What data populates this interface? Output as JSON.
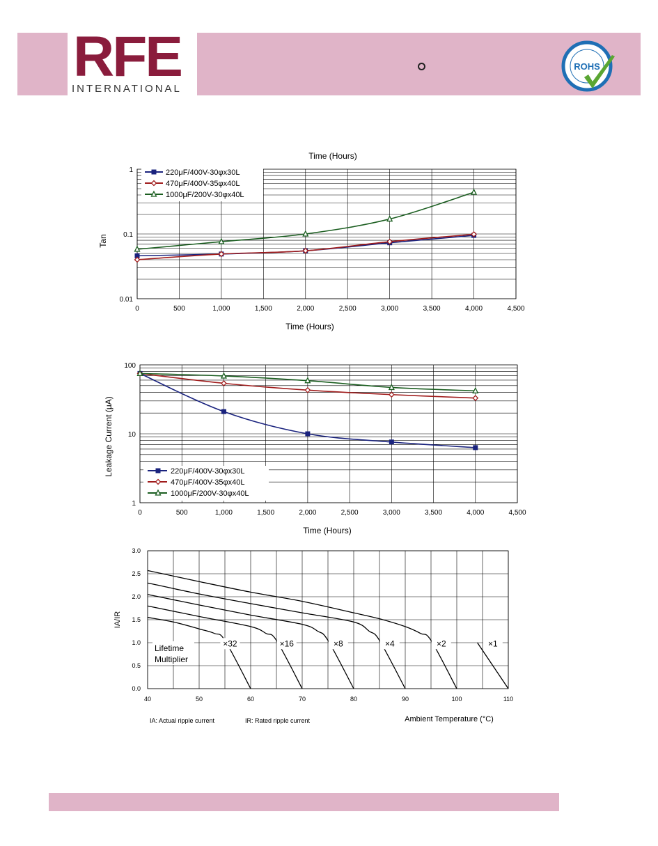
{
  "header": {
    "logo_main": "RFE",
    "logo_sub": "INTERNATIONAL",
    "rohs_badge": "ROHS",
    "colors": {
      "band": "#e0b4c8",
      "logo": "#8a1c3c",
      "rohs_blue": "#1f6fb5",
      "rohs_check": "#5aa632"
    }
  },
  "chart_data": [
    {
      "type": "line",
      "title": "Time (Hours)",
      "xlabel": "Time (Hours)",
      "ylabel": "Tan",
      "xlim": [
        0,
        4500
      ],
      "ylim": [
        0.01,
        1
      ],
      "yscale": "log",
      "x_ticks": [
        "0",
        "500",
        "1,000",
        "1,500",
        "2,000",
        "2,500",
        "3,000",
        "3,500",
        "4,000",
        "4,500"
      ],
      "y_ticks": [
        "1",
        "0.1",
        "0.01"
      ],
      "legend_position": "top-left",
      "series": [
        {
          "name": "220μF/400V-30φx30L",
          "color": "#1a237e",
          "marker": "square",
          "x": [
            0,
            1000,
            2000,
            3000,
            4000
          ],
          "values": [
            0.046,
            0.049,
            0.055,
            0.073,
            0.095
          ]
        },
        {
          "name": "470μF/400V-35φx40L",
          "color": "#a01c1c",
          "marker": "diamond",
          "x": [
            0,
            1000,
            2000,
            3000,
            4000
          ],
          "values": [
            0.04,
            0.049,
            0.055,
            0.076,
            0.099
          ]
        },
        {
          "name": "1000μF/200V-30φx40L",
          "color": "#1b5e20",
          "marker": "triangle",
          "x": [
            0,
            1000,
            2000,
            3000,
            4000
          ],
          "values": [
            0.058,
            0.076,
            0.1,
            0.17,
            0.44
          ]
        }
      ]
    },
    {
      "type": "line",
      "xlabel": "Time (Hours)",
      "ylabel": "Leakage Current (μA)",
      "xlim": [
        0,
        4500
      ],
      "ylim": [
        1,
        100
      ],
      "yscale": "log",
      "x_ticks": [
        "0",
        "500",
        "1,000",
        "1,500",
        "2,000",
        "2,500",
        "3,000",
        "3,500",
        "4,000",
        "4,500"
      ],
      "y_ticks": [
        "100",
        "10",
        "1"
      ],
      "legend_position": "bottom-left",
      "series": [
        {
          "name": "220μF/400V-30φx30L",
          "color": "#1a237e",
          "marker": "square",
          "x": [
            0,
            1000,
            2000,
            3000,
            4000
          ],
          "values": [
            75,
            21,
            10,
            7.6,
            6.3
          ]
        },
        {
          "name": "470μF/400V-35φx40L",
          "color": "#a01c1c",
          "marker": "diamond",
          "x": [
            0,
            1000,
            2000,
            3000,
            4000
          ],
          "values": [
            75,
            54,
            43,
            37,
            33
          ]
        },
        {
          "name": "1000μF/200V-30φx40L",
          "color": "#1b5e20",
          "marker": "triangle",
          "x": [
            0,
            1000,
            2000,
            3000,
            4000
          ],
          "values": [
            75,
            69,
            59,
            47,
            42
          ]
        }
      ]
    },
    {
      "type": "line",
      "xlabel": "Ambient Temperature (°C)",
      "ylabel": "IA/IR",
      "xlim": [
        40,
        110
      ],
      "ylim": [
        0,
        3
      ],
      "x_ticks": [
        "40",
        "50",
        "60",
        "70",
        "80",
        "90",
        "100",
        "110"
      ],
      "y_ticks": [
        "3.0",
        "2.5",
        "2.0",
        "1.5",
        "1.0",
        "0.5",
        "0.0"
      ],
      "notes": [
        "IA: Actual ripple current",
        "IR: Rated ripple current"
      ],
      "lifetime_label": "Lifetime Multiplier",
      "multipliers": [
        "×32",
        "×16",
        "×8",
        "×4",
        "×2",
        "×1"
      ],
      "series": [
        {
          "name": "×32",
          "x": [
            40,
            45,
            50,
            53,
            55,
            60
          ],
          "values": [
            1.55,
            1.45,
            1.3,
            1.2,
            1.05,
            0
          ]
        },
        {
          "name": "×16",
          "x": [
            40,
            50,
            60,
            63,
            65,
            70
          ],
          "values": [
            1.8,
            1.57,
            1.35,
            1.2,
            1.05,
            0
          ]
        },
        {
          "name": "×8",
          "x": [
            40,
            50,
            60,
            70,
            73,
            75,
            80
          ],
          "values": [
            2.05,
            1.82,
            1.6,
            1.4,
            1.25,
            1.05,
            0
          ]
        },
        {
          "name": "×4",
          "x": [
            40,
            50,
            60,
            70,
            80,
            83,
            85,
            90
          ],
          "values": [
            2.3,
            2.06,
            1.85,
            1.65,
            1.45,
            1.25,
            1.05,
            0
          ]
        },
        {
          "name": "×2",
          "x": [
            40,
            50,
            60,
            70,
            80,
            85,
            90,
            93,
            95,
            100
          ],
          "values": [
            2.57,
            2.33,
            2.1,
            1.9,
            1.65,
            1.52,
            1.35,
            1.2,
            1.05,
            0
          ]
        },
        {
          "name": "×1",
          "x": [
            104,
            110
          ],
          "values": [
            1.0,
            0
          ]
        }
      ]
    }
  ]
}
